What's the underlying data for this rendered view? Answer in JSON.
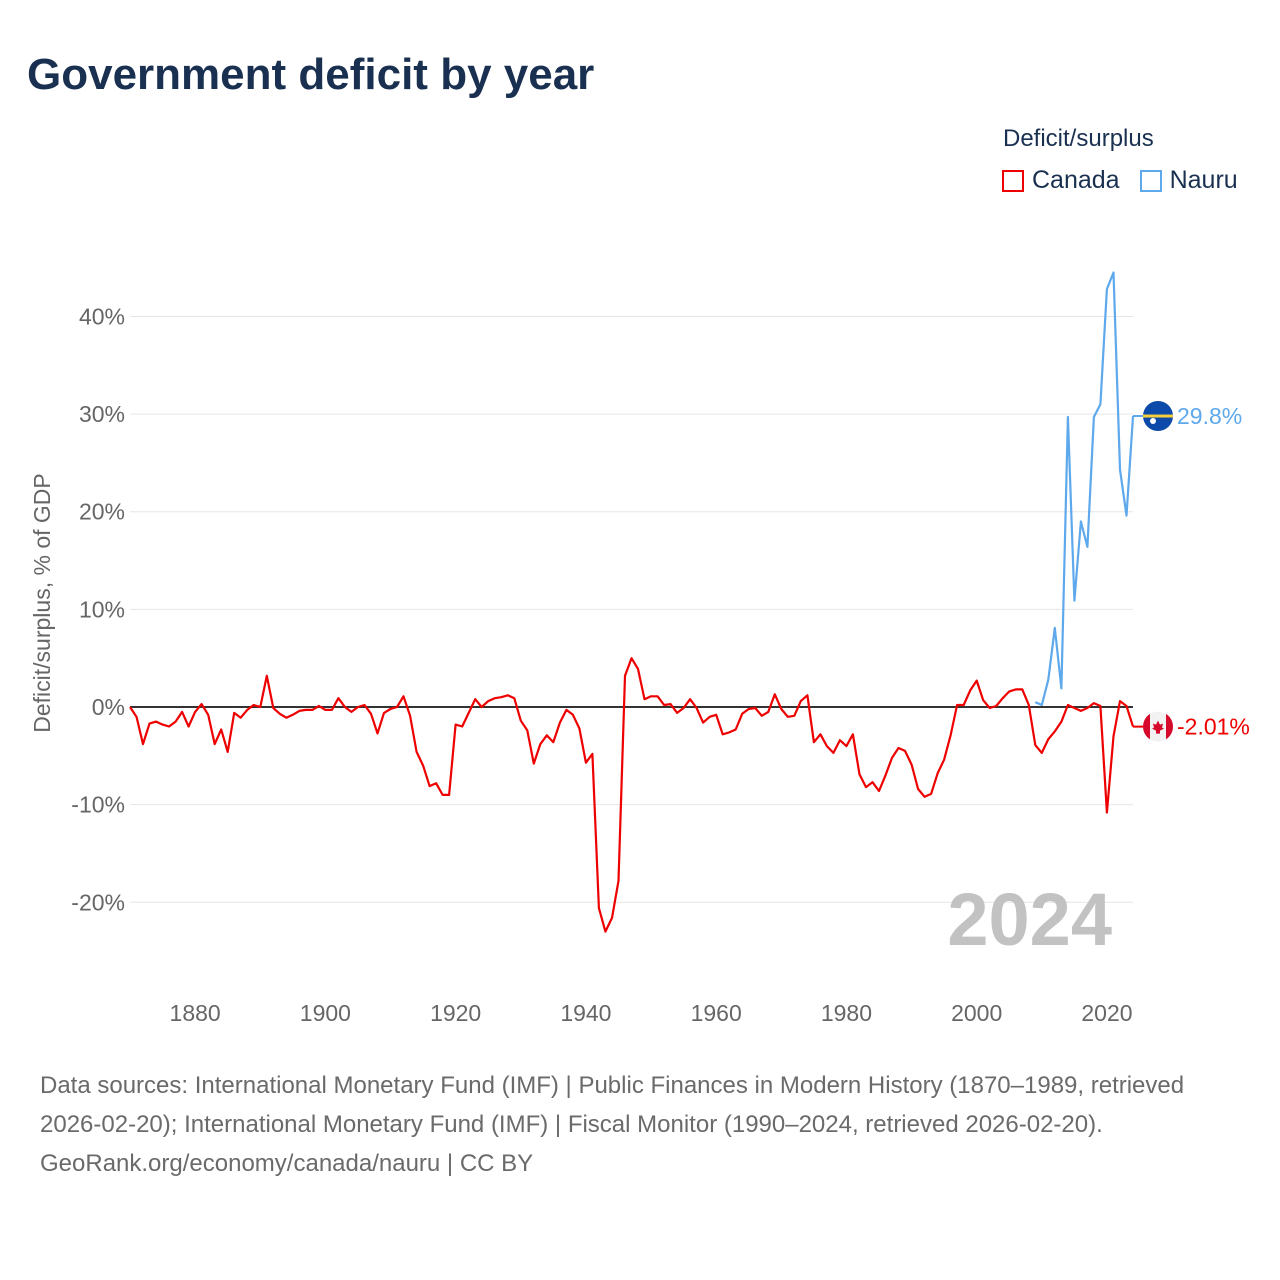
{
  "title": "Government deficit by year",
  "legend": {
    "title": "Deficit/surplus",
    "items": [
      {
        "label": "Canada",
        "color": "#ee0000"
      },
      {
        "label": "Nauru",
        "color": "#5ea8ec"
      }
    ]
  },
  "footer": {
    "sources": "Data sources: International Monetary Fund (IMF) | Public Finances in Modern History (1870–1989, retrieved 2026-02-20); International Monetary Fund (IMF) | Fiscal Monitor (1990–2024, retrieved 2026-02-20).",
    "credit": "GeoRank.org/economy/canada/nauru | CC BY"
  },
  "chart_data": {
    "type": "line",
    "title": "Government deficit by year",
    "ylabel": "Deficit/surplus, % of GDP",
    "xlabel": "",
    "xlim": [
      1870,
      2024
    ],
    "ylim": [
      -26,
      46
    ],
    "x_ticks": [
      1880,
      1900,
      1920,
      1940,
      1960,
      1980,
      2000,
      2020
    ],
    "x_tick_labels": [
      "1880",
      "1900",
      "1920",
      "1940",
      "1960",
      "1980",
      "2000",
      "2020"
    ],
    "y_ticks": [
      -20,
      -10,
      0,
      10,
      20,
      30,
      40
    ],
    "y_tick_labels": [
      "-20%",
      "-10%",
      "0%",
      "10%",
      "20%",
      "30%",
      "40%"
    ],
    "year_watermark": "2024",
    "grid": true,
    "legend_position": "top-right",
    "series": [
      {
        "name": "Canada",
        "color": "#ee0000",
        "start_year": 1870,
        "end_label": "-2.01%",
        "values": [
          0,
          -1,
          -3.8,
          -1.7,
          -1.5,
          -1.8,
          -2,
          -1.5,
          -0.5,
          -2,
          -0.5,
          0.3,
          -0.8,
          -3.8,
          -2.3,
          -4.6,
          -0.6,
          -1.1,
          -0.3,
          0.2,
          0,
          3.2,
          -0.1,
          -0.7,
          -1.1,
          -0.8,
          -0.4,
          -0.3,
          -0.3,
          0.1,
          -0.3,
          -0.3,
          0.9,
          0,
          -0.5,
          0,
          0.2,
          -0.7,
          -2.7,
          -0.6,
          -0.2,
          0,
          1.1,
          -0.9,
          -4.6,
          -6,
          -8.1,
          -7.8,
          -9,
          -9,
          -1.8,
          -2,
          -0.6,
          0.8,
          0,
          0.6,
          0.9,
          1,
          1.2,
          0.9,
          -1.4,
          -2.4,
          -5.8,
          -3.8,
          -2.9,
          -3.6,
          -1.6,
          -0.3,
          -0.8,
          -2.2,
          -5.7,
          -4.8,
          -20.6,
          -23,
          -21.6,
          -17.8,
          3.2,
          5,
          3.9,
          0.8,
          1.1,
          1.1,
          0.2,
          0.3,
          -0.6,
          -0.1,
          0.8,
          -0.1,
          -1.6,
          -1,
          -0.8,
          -2.8,
          -2.6,
          -2.3,
          -0.7,
          -0.2,
          -0.1,
          -0.9,
          -0.5,
          1.3,
          -0.2,
          -1,
          -0.9,
          0.6,
          1.2,
          -3.6,
          -2.8,
          -4,
          -4.7,
          -3.4,
          -4,
          -2.8,
          -6.9,
          -8.2,
          -7.7,
          -8.6,
          -7,
          -5.2,
          -4.2,
          -4.5,
          -5.9,
          -8.4,
          -9.2,
          -8.9,
          -6.8,
          -5.4,
          -2.9,
          0.2,
          0.2,
          1.7,
          2.7,
          0.7,
          -0.1,
          0.1,
          0.9,
          1.6,
          1.8,
          1.8,
          0.2,
          -3.9,
          -4.7,
          -3.3,
          -2.5,
          -1.5,
          0.2,
          -0.1,
          -0.4,
          -0.1,
          0.4,
          0.1,
          -10.8,
          -3,
          0.6,
          0.1,
          -2.01
        ]
      },
      {
        "name": "Nauru",
        "color": "#5ea8ec",
        "start_year": 2009,
        "end_label": "29.8%",
        "values": [
          0.5,
          0.2,
          2.8,
          8.1,
          1.9,
          29.7,
          10.9,
          19,
          16.4,
          29.7,
          31,
          42.8,
          44.5,
          24.3,
          19.6,
          29.8
        ]
      }
    ]
  }
}
